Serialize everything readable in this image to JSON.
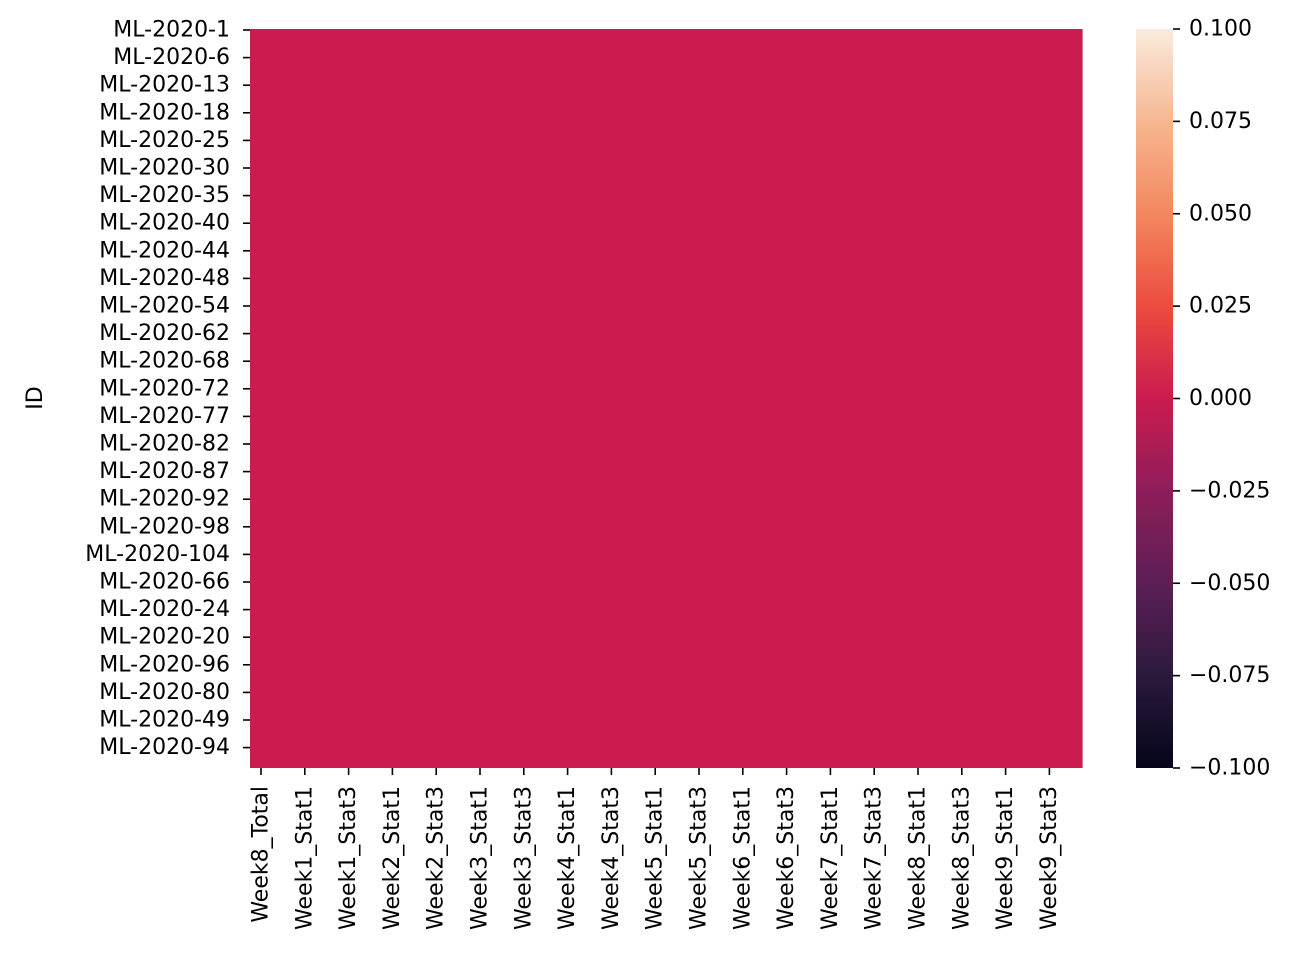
{
  "chart_data": {
    "type": "heatmap",
    "title": "",
    "xlabel": "",
    "ylabel": "ID",
    "x_tick_labels": [
      "Week8_Total",
      "Week1_Stat1",
      "Week1_Stat3",
      "Week2_Stat1",
      "Week2_Stat3",
      "Week3_Stat1",
      "Week3_Stat3",
      "Week4_Stat1",
      "Week4_Stat3",
      "Week5_Stat1",
      "Week5_Stat3",
      "Week6_Stat1",
      "Week6_Stat3",
      "Week7_Stat1",
      "Week7_Stat3",
      "Week8_Stat1",
      "Week8_Stat3",
      "Week9_Stat1",
      "Week9_Stat3"
    ],
    "y_tick_labels": [
      "ML-2020-1",
      "ML-2020-6",
      "ML-2020-13",
      "ML-2020-18",
      "ML-2020-25",
      "ML-2020-30",
      "ML-2020-35",
      "ML-2020-40",
      "ML-2020-44",
      "ML-2020-48",
      "ML-2020-54",
      "ML-2020-62",
      "ML-2020-68",
      "ML-2020-72",
      "ML-2020-77",
      "ML-2020-82",
      "ML-2020-87",
      "ML-2020-92",
      "ML-2020-98",
      "ML-2020-104",
      "ML-2020-66",
      "ML-2020-24",
      "ML-2020-20",
      "ML-2020-96",
      "ML-2020-80",
      "ML-2020-49",
      "ML-2020-94"
    ],
    "value": 0.0,
    "cell_color": "#cb1b4f",
    "colorbar": {
      "range": [
        -0.1,
        0.1
      ],
      "ticks": [
        0.1,
        0.075,
        0.05,
        0.025,
        0.0,
        -0.025,
        -0.05,
        -0.075,
        -0.1
      ],
      "tick_labels": [
        "0.100",
        "0.075",
        "0.050",
        "0.025",
        "0.000",
        "−0.025",
        "−0.050",
        "−0.075",
        "−0.100"
      ],
      "colormap": "rocket",
      "stops": [
        "#03051a",
        "#2b1a3d",
        "#5c1f54",
        "#8e1d5b",
        "#cb1b4f",
        "#ec4c3e",
        "#f4875e",
        "#f6b791",
        "#faebdd"
      ]
    }
  }
}
